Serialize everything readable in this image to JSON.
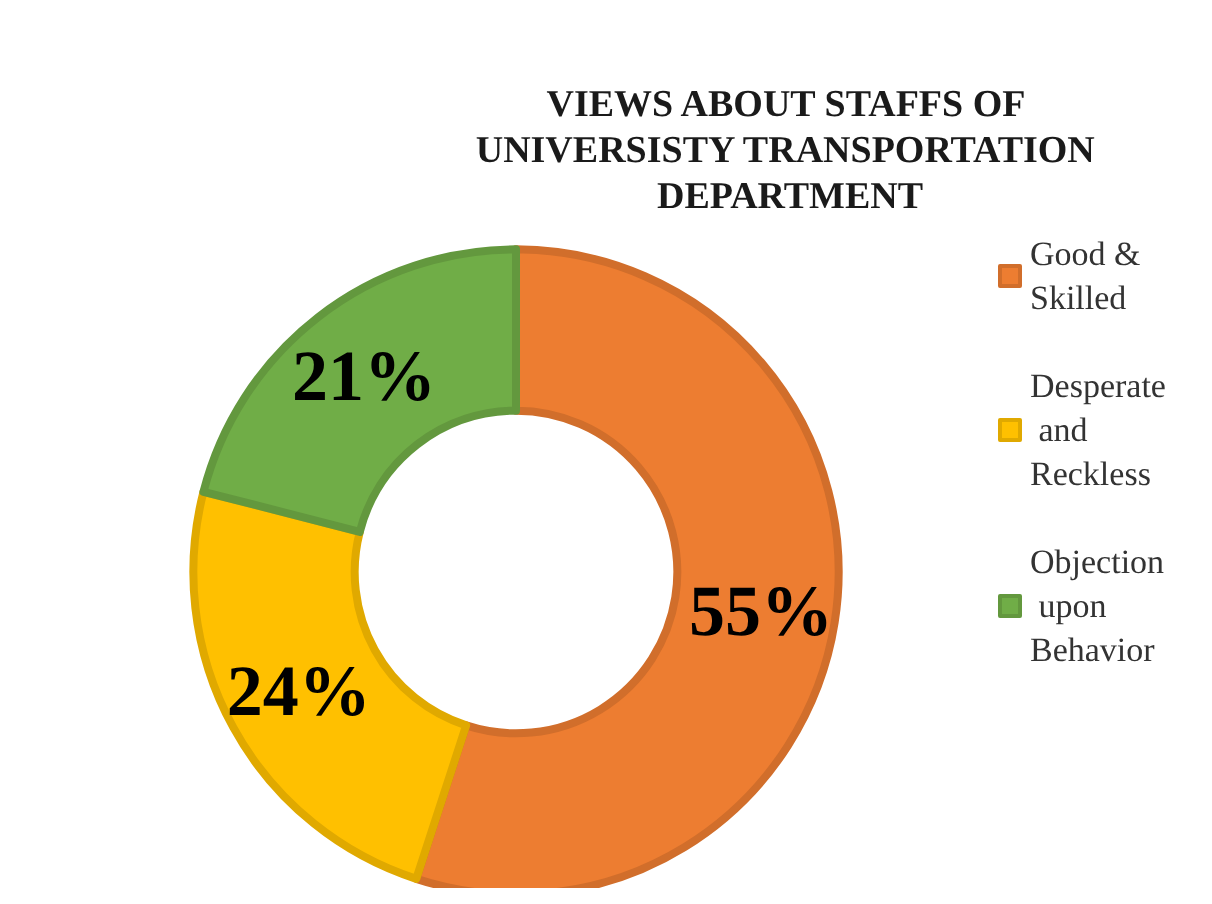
{
  "chart_data": {
    "type": "donut",
    "title": "VIEWS ABOUT STAFFS OF UNIVERSISTY TRANSPORTATION DEPARTMENT",
    "categories": [
      "Good & Skilled",
      "Desperate and Reckless",
      "Objection upon Behavior"
    ],
    "values": [
      55,
      24,
      21
    ],
    "value_labels": [
      "55%",
      "24%",
      "21%"
    ],
    "colors": [
      "#ed7d31",
      "#ffc000",
      "#70ad47"
    ],
    "legend": "right"
  }
}
